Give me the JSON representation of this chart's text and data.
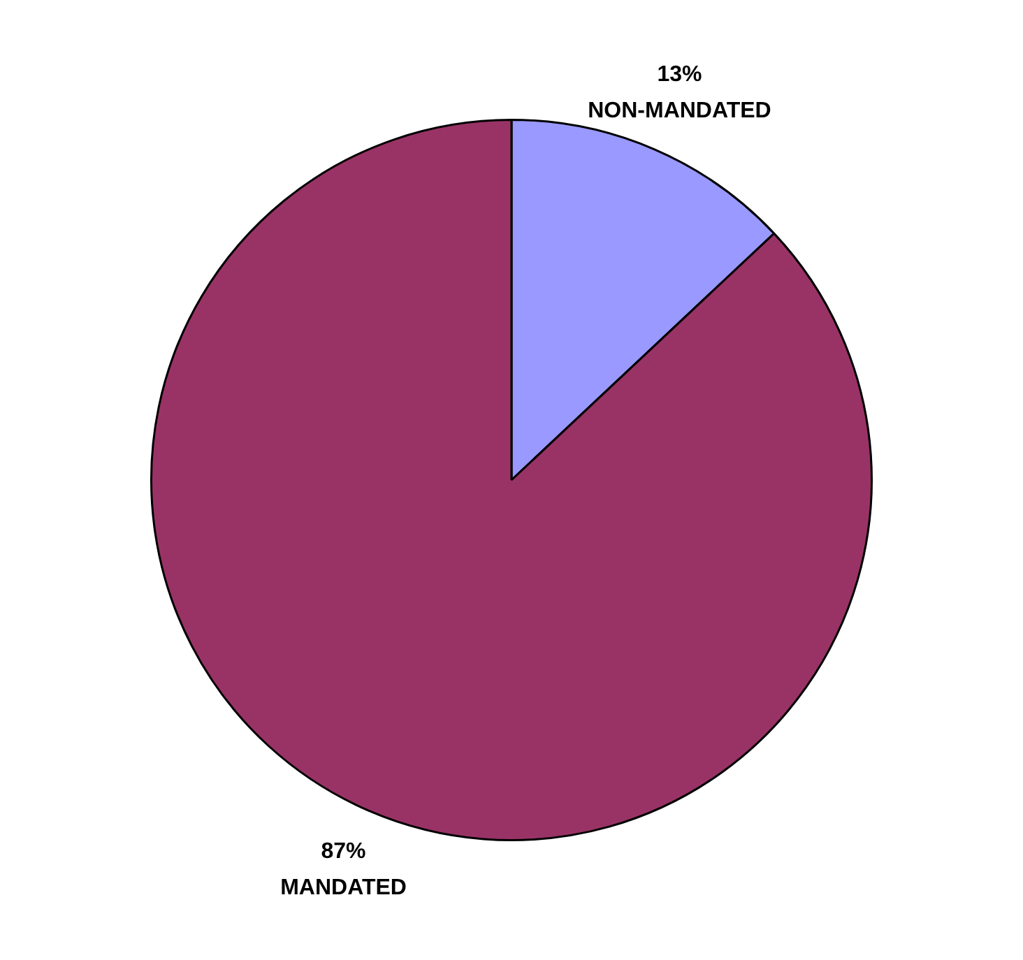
{
  "chart_data": {
    "type": "pie",
    "categories": [
      "NON-MANDATED",
      "MANDATED"
    ],
    "values": [
      13,
      87
    ],
    "colors": [
      "#9999ff",
      "#993366"
    ],
    "value_labels": [
      "13%",
      "87%"
    ],
    "legend": false
  }
}
